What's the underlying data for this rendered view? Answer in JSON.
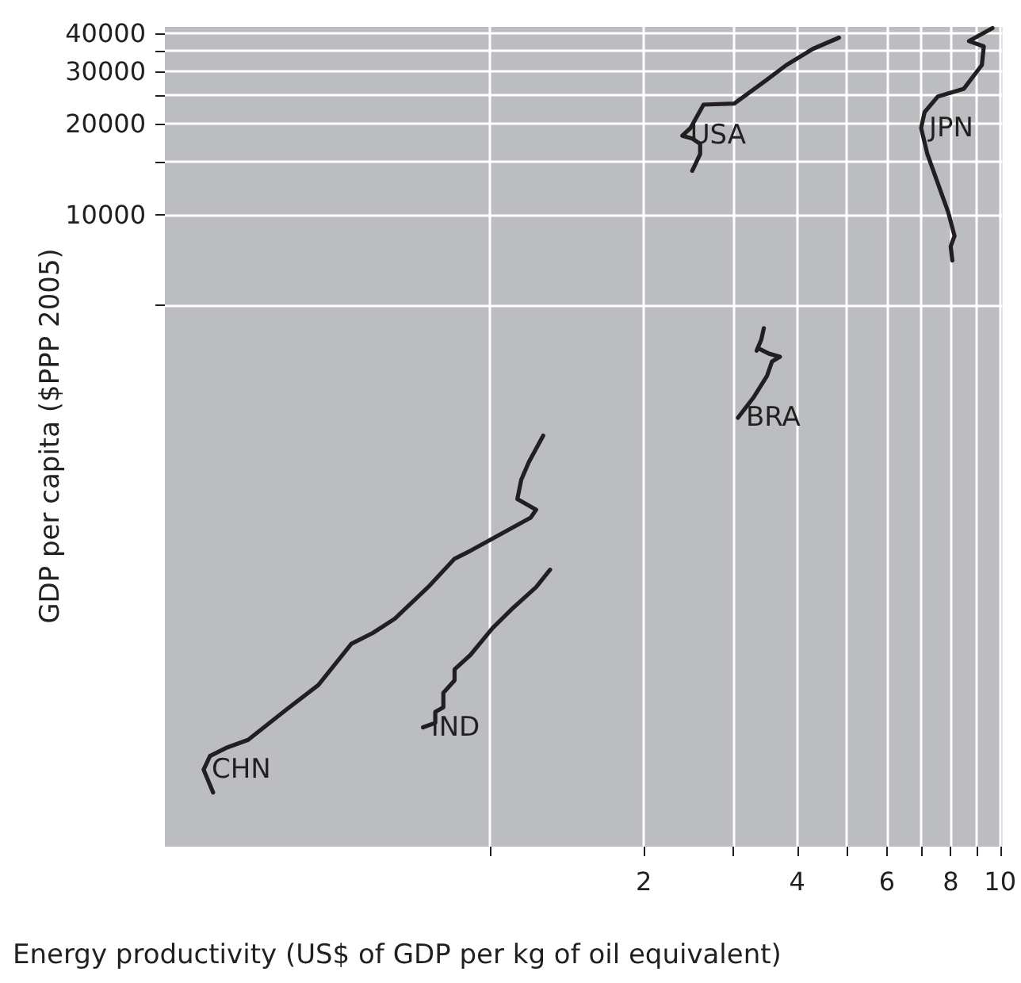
{
  "chart_data": {
    "type": "line",
    "xlabel": "Energy productivity (US$ of GDP per kg of oil equivalent)",
    "ylabel": "GDP per capita ($PPP 2005)",
    "log": "xy",
    "grid": true,
    "legend": false,
    "marker": "none",
    "line_style": "solid",
    "xlim": [
      0.23,
      10.1
    ],
    "xticks": [
      {
        "value": 1,
        "label": null
      },
      2,
      {
        "value": 3,
        "label": null
      },
      4,
      {
        "value": 5,
        "label": null
      },
      6,
      {
        "value": 7,
        "label": null
      },
      8,
      {
        "value": 9,
        "label": null
      },
      10
    ],
    "ylim": [
      80,
      42000
    ],
    "yticks": [
      {
        "value": 5000,
        "label": null
      },
      10000,
      {
        "value": 15000,
        "label": null
      },
      20000,
      {
        "value": 25000,
        "label": null
      },
      30000,
      {
        "value": 35000,
        "label": null
      },
      40000
    ],
    "series": [
      {
        "name": "CHN",
        "color": "#231f20",
        "x": [
          0.286,
          0.274,
          0.282,
          0.303,
          0.335,
          0.397,
          0.46,
          0.534,
          0.589,
          0.65,
          0.755,
          0.851,
          0.914,
          1.2,
          1.23,
          1.13,
          1.15,
          1.19,
          1.27
        ],
        "values": [
          121,
          144,
          160,
          170,
          181,
          227,
          275,
          377,
          410,
          457,
          581,
          722,
          767,
          988,
          1050,
          1140,
          1320,
          1510,
          1850
        ]
      },
      {
        "name": "IND",
        "color": "#231f20",
        "x": [
          0.738,
          0.78,
          0.78,
          0.809,
          0.809,
          0.851,
          0.851,
          0.914,
          1.01,
          1.11,
          1.23,
          1.31
        ],
        "values": [
          199,
          206,
          224,
          232,
          259,
          285,
          310,
          346,
          425,
          497,
          581,
          664
        ]
      },
      {
        "name": "BRA",
        "color": "#231f20",
        "x": [
          3.06,
          3.28,
          3.49,
          3.57,
          3.7,
          3.52,
          3.35,
          3.33,
          3.4,
          3.44
        ],
        "values": [
          2120,
          2470,
          2920,
          3260,
          3380,
          3460,
          3610,
          3540,
          3850,
          4200
        ]
      },
      {
        "name": "USA",
        "color": "#231f20",
        "x": [
          2.49,
          2.58,
          2.58,
          2.49,
          2.38,
          2.47,
          2.62,
          3.01,
          3.47,
          3.81,
          4.29,
          4.83
        ],
        "values": [
          14000,
          15900,
          17200,
          17900,
          18300,
          19400,
          23200,
          23400,
          27900,
          31400,
          35500,
          38700
        ]
      },
      {
        "name": "JPN",
        "color": "#231f20",
        "x": [
          8.06,
          8.0,
          8.14,
          7.91,
          7.55,
          7.2,
          7.0,
          7.11,
          7.55,
          8.49,
          9.21,
          9.29,
          8.69,
          9.66
        ],
        "values": [
          7050,
          7850,
          8510,
          10200,
          12700,
          15900,
          19400,
          21900,
          24700,
          26200,
          31400,
          36200,
          37700,
          41600
        ]
      }
    ]
  }
}
